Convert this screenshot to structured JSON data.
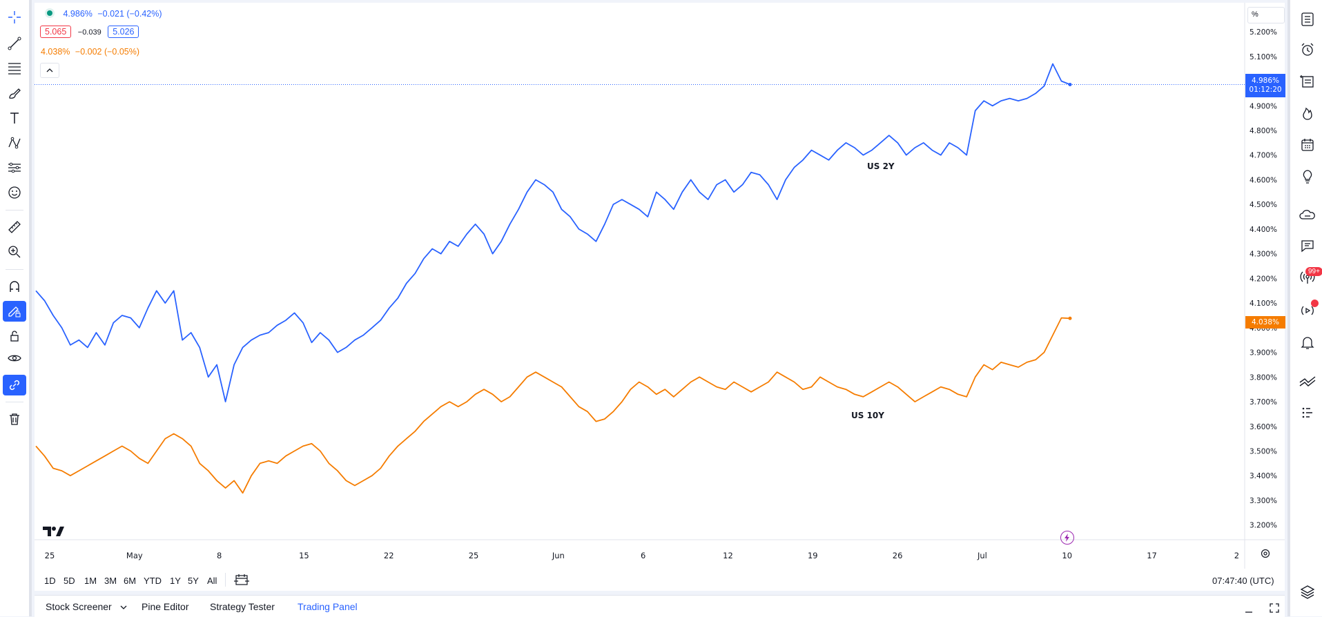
{
  "legend": {
    "series1_value": "4.986%",
    "series1_change": "−0.021 (−0.42%)",
    "bid": "5.065",
    "spread": "−0.039",
    "ask": "5.026",
    "series2_value": "4.038%",
    "series2_change": "−0.002 (−0.05%)"
  },
  "price_axis": {
    "unit_label": "%",
    "ticks": [
      "5.200%",
      "5.100%",
      "5.000%",
      "4.900%",
      "4.800%",
      "4.700%",
      "4.600%",
      "4.500%",
      "4.400%",
      "4.300%",
      "4.200%",
      "4.100%",
      "4.000%",
      "3.900%",
      "3.800%",
      "3.700%",
      "3.600%",
      "3.500%",
      "3.400%",
      "3.300%",
      "3.200%"
    ],
    "tick_values": [
      5.2,
      5.1,
      5.0,
      4.9,
      4.8,
      4.7,
      4.6,
      4.5,
      4.4,
      4.3,
      4.2,
      4.1,
      4.0,
      3.9,
      3.8,
      3.7,
      3.6,
      3.5,
      3.4,
      3.3,
      3.2
    ],
    "current_label_1": "4.986%",
    "current_time_1": "01:12:20",
    "current_label_2": "4.038%"
  },
  "date_axis": {
    "labels": [
      "25",
      "May",
      "8",
      "15",
      "22",
      "25",
      "Jun",
      "6",
      "12",
      "19",
      "26",
      "Jul",
      "10",
      "17",
      "2"
    ]
  },
  "chart_data": {
    "type": "line",
    "ylim": [
      3.16,
      5.245
    ],
    "series": [
      {
        "name": "US 2Y",
        "color": "#2962ff",
        "values": [
          4.15,
          4.11,
          4.05,
          4.0,
          3.93,
          3.95,
          3.92,
          3.98,
          3.93,
          4.02,
          4.05,
          4.04,
          4.0,
          4.08,
          4.15,
          4.1,
          4.15,
          3.95,
          3.98,
          3.92,
          3.8,
          3.85,
          3.7,
          3.85,
          3.92,
          3.95,
          3.97,
          3.98,
          4.01,
          4.03,
          4.06,
          4.02,
          3.94,
          3.98,
          3.95,
          3.9,
          3.92,
          3.95,
          3.97,
          4.0,
          4.03,
          4.08,
          4.12,
          4.18,
          4.22,
          4.28,
          4.32,
          4.3,
          4.35,
          4.33,
          4.38,
          4.42,
          4.38,
          4.3,
          4.35,
          4.42,
          4.48,
          4.55,
          4.6,
          4.58,
          4.55,
          4.48,
          4.45,
          4.4,
          4.38,
          4.35,
          4.42,
          4.5,
          4.52,
          4.5,
          4.48,
          4.45,
          4.55,
          4.52,
          4.48,
          4.55,
          4.6,
          4.55,
          4.52,
          4.58,
          4.6,
          4.55,
          4.58,
          4.63,
          4.62,
          4.58,
          4.52,
          4.6,
          4.65,
          4.68,
          4.72,
          4.7,
          4.68,
          4.72,
          4.75,
          4.73,
          4.7,
          4.72,
          4.75,
          4.78,
          4.75,
          4.7,
          4.73,
          4.75,
          4.72,
          4.7,
          4.75,
          4.73,
          4.7,
          4.88,
          4.92,
          4.9,
          4.92,
          4.93,
          4.92,
          4.93,
          4.95,
          4.98,
          5.07,
          5.0,
          4.986
        ]
      },
      {
        "name": "US 10Y",
        "color": "#f57c00",
        "values": [
          3.52,
          3.48,
          3.43,
          3.42,
          3.4,
          3.42,
          3.44,
          3.46,
          3.48,
          3.5,
          3.52,
          3.5,
          3.47,
          3.45,
          3.5,
          3.55,
          3.57,
          3.55,
          3.52,
          3.45,
          3.42,
          3.38,
          3.35,
          3.38,
          3.33,
          3.4,
          3.45,
          3.46,
          3.45,
          3.48,
          3.5,
          3.52,
          3.53,
          3.5,
          3.45,
          3.42,
          3.38,
          3.36,
          3.38,
          3.4,
          3.43,
          3.48,
          3.52,
          3.55,
          3.58,
          3.62,
          3.65,
          3.68,
          3.7,
          3.68,
          3.7,
          3.73,
          3.75,
          3.73,
          3.7,
          3.72,
          3.76,
          3.8,
          3.82,
          3.8,
          3.78,
          3.76,
          3.72,
          3.68,
          3.66,
          3.62,
          3.63,
          3.66,
          3.7,
          3.75,
          3.78,
          3.76,
          3.73,
          3.75,
          3.72,
          3.75,
          3.78,
          3.8,
          3.78,
          3.76,
          3.75,
          3.78,
          3.76,
          3.74,
          3.76,
          3.78,
          3.82,
          3.8,
          3.78,
          3.75,
          3.76,
          3.8,
          3.78,
          3.76,
          3.75,
          3.73,
          3.72,
          3.74,
          3.76,
          3.78,
          3.76,
          3.73,
          3.7,
          3.72,
          3.74,
          3.76,
          3.75,
          3.73,
          3.72,
          3.8,
          3.85,
          3.83,
          3.86,
          3.85,
          3.84,
          3.86,
          3.87,
          3.9,
          3.97,
          4.04,
          4.038
        ]
      }
    ]
  },
  "timeframes": [
    "1D",
    "5D",
    "1M",
    "3M",
    "6M",
    "YTD",
    "1Y",
    "5Y",
    "All"
  ],
  "clock": "07:47:40 (UTC)",
  "bottom_tabs": {
    "screener": "Stock Screener",
    "pine": "Pine Editor",
    "strategy": "Strategy Tester",
    "trading": "Trading Panel"
  },
  "badge_count": "99+",
  "colors": {
    "blue": "#2962ff",
    "orange": "#f57c00",
    "red": "#f23645",
    "teal": "#089981"
  }
}
